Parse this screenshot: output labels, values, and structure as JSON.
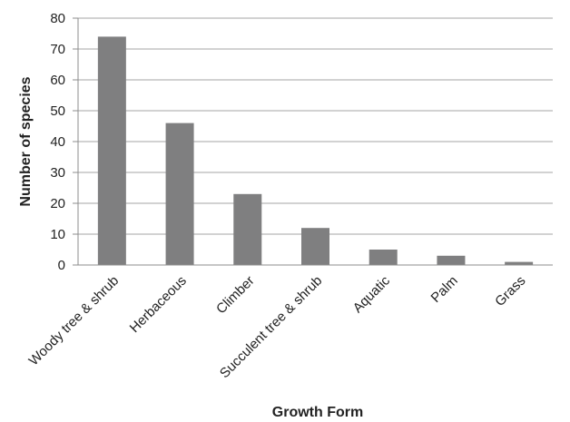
{
  "chart_data": {
    "type": "bar",
    "title": "",
    "xlabel": "Growth Form",
    "ylabel": "Number of species",
    "categories": [
      "Woody tree & shrub",
      "Herbaceous",
      "Climber",
      "Succulent tree & shrub",
      "Aquatic",
      "Palm",
      "Grass"
    ],
    "values": [
      74,
      46,
      23,
      12,
      5,
      3,
      1
    ],
    "ylim": [
      0,
      80
    ],
    "yticks": [
      "0",
      "10",
      "20",
      "30",
      "40",
      "50",
      "60",
      "70",
      "80"
    ],
    "grid": true,
    "legend": "none",
    "colors": {
      "bar": "#7f7f80",
      "grid": "#a6a6a6",
      "axis": "#8c8c8c"
    }
  }
}
